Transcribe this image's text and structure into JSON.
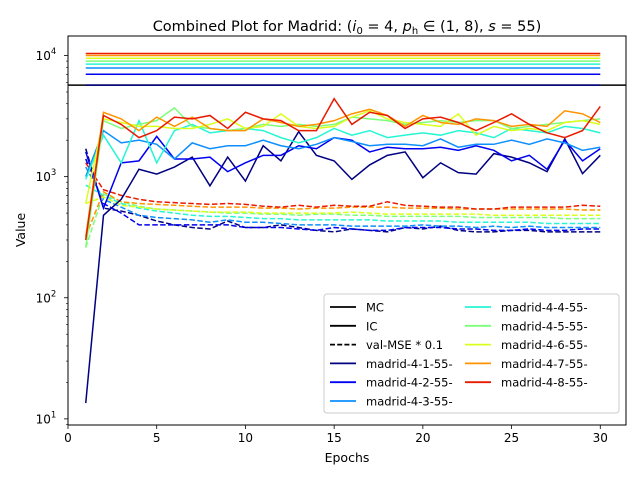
{
  "chart_data": {
    "type": "line",
    "title": "Combined Plot for Madrid: (i₀ = 4, pₕ ∈ (1, 8), s = 55)",
    "title_parts": {
      "prefix": "Combined Plot for Madrid: (",
      "i_var": "i",
      "i_sub": "0",
      "i_val": " = 4, ",
      "p_var": "p",
      "p_sub": "h",
      "p_val": " ∈ (1, 8), ",
      "s_var": "s",
      "s_val": " = 55)"
    },
    "xlabel": "Epochs",
    "ylabel": "Value",
    "xlim": [
      0,
      31.45
    ],
    "ylim": [
      8.9,
      14500
    ],
    "yscale": "log",
    "xticks": [
      0,
      5,
      10,
      15,
      20,
      25,
      30
    ],
    "yticks": [
      {
        "value": 10,
        "base": "10",
        "exp": "1"
      },
      {
        "value": 100,
        "base": "10",
        "exp": "2"
      },
      {
        "value": 1000,
        "base": "10",
        "exp": "3"
      },
      {
        "value": 10000,
        "base": "10",
        "exp": "4"
      }
    ],
    "legend_position": "lower-right",
    "legend_columns": 2,
    "grid": false,
    "legend": [
      {
        "label": "MC",
        "style": "solid",
        "color": "#000000"
      },
      {
        "label": "IC",
        "style": "solid",
        "color": "#000000"
      },
      {
        "label": "val-MSE * 0.1",
        "style": "dashed",
        "color": "#000000"
      },
      {
        "label": "madrid-4-1-55-",
        "style": "solid",
        "color": "#000080"
      },
      {
        "label": "madrid-4-2-55-",
        "style": "solid",
        "color": "#0000f1"
      },
      {
        "label": "madrid-4-3-55-",
        "style": "solid",
        "color": "#0d8ffd"
      },
      {
        "label": "madrid-4-4-55-",
        "style": "solid",
        "color": "#26f6d4"
      },
      {
        "label": "madrid-4-5-55-",
        "style": "solid",
        "color": "#7dff7a"
      },
      {
        "label": "madrid-4-6-55-",
        "style": "solid",
        "color": "#dbff1c"
      },
      {
        "label": "madrid-4-7-55-",
        "style": "solid",
        "color": "#ff9400"
      },
      {
        "label": "madrid-4-8-55-",
        "style": "solid",
        "color": "#e81a00"
      }
    ],
    "epochs": [
      1,
      2,
      3,
      4,
      5,
      6,
      7,
      8,
      9,
      10,
      11,
      12,
      13,
      14,
      15,
      16,
      17,
      18,
      19,
      20,
      21,
      22,
      23,
      24,
      25,
      26,
      27,
      28,
      29,
      30
    ],
    "hlines": [
      {
        "color": "#000080",
        "value": 5700
      },
      {
        "color": "#0000f1",
        "value": 7000
      },
      {
        "color": "#0d8ffd",
        "value": 7900
      },
      {
        "color": "#26f6d4",
        "value": 8500
      },
      {
        "color": "#7dff7a",
        "value": 9000
      },
      {
        "color": "#dbff1c",
        "value": 9500
      },
      {
        "color": "#ff9400",
        "value": 10000
      },
      {
        "color": "#e81a00",
        "value": 10400
      }
    ],
    "series": [
      {
        "color": "#000080",
        "values": [
          13.5,
          480,
          650,
          1150,
          1050,
          1200,
          1450,
          840,
          1450,
          920,
          1800,
          1350,
          2350,
          1500,
          1350,
          950,
          1250,
          1500,
          1600,
          980,
          1300,
          1080,
          1050,
          1550,
          1450,
          1300,
          1100,
          2050,
          1060,
          1500
        ],
        "val_mse": [
          1700,
          550,
          520,
          480,
          430,
          400,
          380,
          370,
          430,
          380,
          380,
          400,
          380,
          360,
          350,
          370,
          360,
          350,
          380,
          370,
          390,
          360,
          350,
          350,
          360,
          360,
          350,
          350,
          350,
          350
        ]
      },
      {
        "color": "#0000f1",
        "values": [
          1600,
          550,
          1300,
          1350,
          2150,
          1400,
          1400,
          1450,
          1100,
          1300,
          1500,
          1500,
          1800,
          1700,
          2100,
          2000,
          1600,
          1750,
          1700,
          1700,
          1750,
          1650,
          1800,
          1650,
          1350,
          1500,
          1150,
          2000,
          1350,
          1700
        ],
        "val_mse": [
          1400,
          600,
          500,
          400,
          400,
          400,
          400,
          400,
          400,
          380,
          380,
          380,
          370,
          360,
          380,
          370,
          360,
          360,
          380,
          380,
          380,
          370,
          370,
          360,
          360,
          370,
          360,
          360,
          370,
          370
        ]
      },
      {
        "color": "#0d8ffd",
        "values": [
          1000,
          2400,
          1900,
          2000,
          1850,
          1400,
          1900,
          1700,
          1800,
          1800,
          2000,
          1800,
          1700,
          1850,
          2100,
          1950,
          1800,
          1850,
          1850,
          1800,
          2050,
          1750,
          1850,
          1850,
          2000,
          1850,
          2050,
          1900,
          1650,
          1750
        ],
        "val_mse": [
          1200,
          650,
          560,
          480,
          460,
          450,
          440,
          420,
          440,
          420,
          420,
          410,
          400,
          400,
          400,
          390,
          390,
          390,
          390,
          400,
          390,
          390,
          380,
          390,
          380,
          390,
          380,
          380,
          380,
          380
        ]
      },
      {
        "color": "#26f6d4",
        "values": [
          950,
          2200,
          1300,
          2900,
          1300,
          2400,
          2700,
          2300,
          2400,
          2500,
          2400,
          2100,
          1900,
          2100,
          2500,
          2200,
          2400,
          2100,
          2200,
          2300,
          2200,
          2400,
          2300,
          2100,
          2500,
          2400,
          2300,
          2600,
          2500,
          2300
        ],
        "val_mse": [
          850,
          700,
          600,
          550,
          520,
          500,
          480,
          470,
          470,
          460,
          450,
          450,
          440,
          440,
          440,
          440,
          440,
          430,
          430,
          430,
          430,
          420,
          420,
          420,
          420,
          420,
          410,
          410,
          410,
          410
        ]
      },
      {
        "color": "#7dff7a",
        "values": [
          260,
          2900,
          2500,
          2700,
          2900,
          3700,
          2600,
          2500,
          2400,
          2500,
          2700,
          2600,
          2700,
          2600,
          2700,
          3100,
          3000,
          2900,
          2700,
          2800,
          2900,
          2800,
          2900,
          2900,
          2500,
          2600,
          2700,
          2800,
          2900,
          3000
        ],
        "val_mse": [
          260,
          720,
          620,
          570,
          540,
          530,
          520,
          510,
          500,
          500,
          490,
          490,
          480,
          490,
          490,
          480,
          480,
          470,
          470,
          470,
          470,
          470,
          460,
          460,
          460,
          460,
          460,
          450,
          450,
          450
        ]
      },
      {
        "color": "#dbff1c",
        "values": [
          600,
          3000,
          2800,
          2600,
          2600,
          2500,
          2500,
          2700,
          3000,
          2500,
          2600,
          3300,
          2600,
          2500,
          2600,
          3100,
          3500,
          3000,
          2800,
          2700,
          2600,
          3300,
          2200,
          2600,
          2400,
          2500,
          2400,
          2800,
          2900,
          2700
        ],
        "val_mse": [
          600,
          680,
          580,
          560,
          540,
          530,
          520,
          510,
          510,
          510,
          500,
          500,
          500,
          500,
          500,
          510,
          500,
          490,
          490,
          490,
          490,
          490,
          490,
          480,
          480,
          480,
          480,
          480,
          480,
          480
        ]
      },
      {
        "color": "#ff9400",
        "values": [
          320,
          3400,
          3000,
          2400,
          3100,
          2600,
          3100,
          2500,
          2400,
          2400,
          3000,
          2800,
          2600,
          2700,
          2900,
          3300,
          3600,
          3200,
          2600,
          3200,
          2800,
          2700,
          3000,
          2900,
          2600,
          2700,
          2600,
          3500,
          3300,
          2800
        ],
        "val_mse": [
          320,
          750,
          620,
          600,
          590,
          580,
          570,
          560,
          560,
          560,
          550,
          550,
          540,
          550,
          550,
          560,
          560,
          560,
          550,
          550,
          550,
          540,
          540,
          540,
          540,
          540,
          540,
          540,
          530,
          530
        ]
      },
      {
        "color": "#e81a00",
        "values": [
          300,
          3200,
          2700,
          2100,
          2400,
          3100,
          3000,
          3200,
          2500,
          3400,
          3000,
          2900,
          2400,
          2400,
          4400,
          2700,
          3400,
          3200,
          2500,
          3000,
          3100,
          2800,
          2400,
          2800,
          3300,
          2700,
          2300,
          2100,
          2400,
          3800
        ],
        "val_mse": [
          1300,
          780,
          700,
          650,
          620,
          610,
          600,
          590,
          600,
          590,
          570,
          560,
          580,
          560,
          580,
          570,
          570,
          620,
          580,
          570,
          560,
          560,
          540,
          540,
          560,
          560,
          560,
          560,
          580,
          570
        ]
      }
    ]
  }
}
